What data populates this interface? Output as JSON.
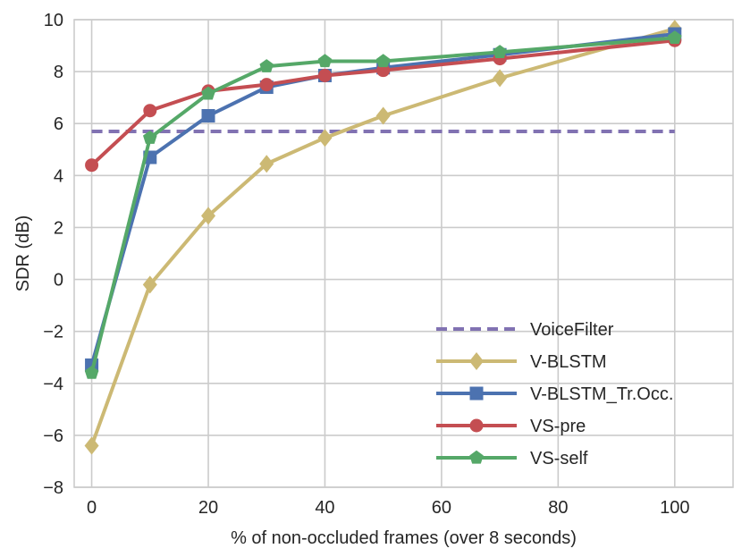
{
  "chart_data": {
    "type": "line",
    "title": "",
    "xlabel": "% of non-occluded frames (over 8 seconds)",
    "ylabel": "SDR (dB)",
    "xlim": [
      -3,
      110
    ],
    "ylim": [
      -8,
      10
    ],
    "xticks": [
      0,
      20,
      40,
      60,
      80,
      100
    ],
    "yticks": [
      -8,
      -6,
      -4,
      -2,
      0,
      2,
      4,
      6,
      8,
      10
    ],
    "xtick_labels": [
      "0",
      "20",
      "40",
      "60",
      "80",
      "100"
    ],
    "ytick_labels": [
      "−8",
      "−6",
      "−4",
      "−2",
      "0",
      "2",
      "4",
      "6",
      "8",
      "10"
    ],
    "grid": true,
    "legend_position": "lower-right",
    "series": [
      {
        "name": "VoiceFilter",
        "style": "dashed",
        "marker": "none",
        "color": "#8172B2",
        "x": [
          0,
          100
        ],
        "y": [
          5.7,
          5.7
        ]
      },
      {
        "name": "V-BLSTM",
        "style": "solid",
        "marker": "diamond",
        "color": "#CCB974",
        "x": [
          0,
          10,
          20,
          30,
          40,
          50,
          70,
          100
        ],
        "y": [
          -6.4,
          -0.2,
          2.45,
          4.45,
          5.45,
          6.3,
          7.75,
          9.65
        ]
      },
      {
        "name": "V-BLSTM_Tr.Occ.",
        "style": "solid",
        "marker": "square",
        "color": "#4C72B0",
        "x": [
          0,
          10,
          20,
          30,
          40,
          50,
          70,
          100
        ],
        "y": [
          -3.3,
          4.7,
          6.3,
          7.4,
          7.85,
          8.15,
          8.65,
          9.45
        ]
      },
      {
        "name": "VS-pre",
        "style": "solid",
        "marker": "circle",
        "color": "#C44E52",
        "x": [
          0,
          10,
          20,
          30,
          40,
          50,
          70,
          100
        ],
        "y": [
          4.4,
          6.5,
          7.25,
          7.5,
          7.85,
          8.05,
          8.5,
          9.2
        ]
      },
      {
        "name": "VS-self",
        "style": "solid",
        "marker": "pentagon",
        "color": "#55A868",
        "x": [
          0,
          10,
          20,
          30,
          40,
          50,
          70,
          100
        ],
        "y": [
          -3.6,
          5.45,
          7.15,
          8.2,
          8.4,
          8.4,
          8.75,
          9.3
        ]
      }
    ]
  },
  "colors": {
    "grid": "#cbcbcb",
    "text": "#262626",
    "background": "#ffffff"
  }
}
